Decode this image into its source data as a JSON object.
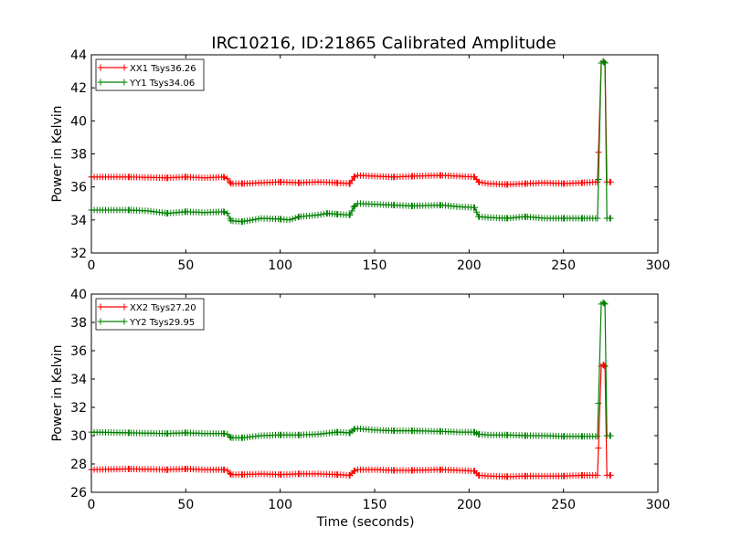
{
  "chart_data": [
    {
      "type": "line",
      "title": "IRC10216, ID:21865 Calibrated Amplitude",
      "xlabel": "",
      "ylabel": "Power in Kelvin",
      "xlim": [
        0,
        300
      ],
      "ylim": [
        32,
        44
      ],
      "xticks": [
        0,
        50,
        100,
        150,
        200,
        250,
        300
      ],
      "yticks": [
        32,
        34,
        36,
        38,
        40,
        42,
        44
      ],
      "legend_position": "top-left",
      "grid": false,
      "marker": "+",
      "series": [
        {
          "name": "XX1 Tsys36.26",
          "color": "#ff0000",
          "x": [
            0,
            20,
            40,
            50,
            60,
            70,
            72,
            74,
            80,
            90,
            100,
            110,
            120,
            130,
            137,
            139,
            141,
            150,
            160,
            170,
            185,
            195,
            203,
            205,
            210,
            220,
            230,
            240,
            250,
            260,
            268,
            270,
            271,
            272,
            273,
            275
          ],
          "y": [
            36.6,
            36.6,
            36.55,
            36.6,
            36.55,
            36.6,
            36.5,
            36.2,
            36.2,
            36.25,
            36.3,
            36.25,
            36.3,
            36.25,
            36.2,
            36.6,
            36.7,
            36.65,
            36.6,
            36.65,
            36.7,
            36.65,
            36.6,
            36.3,
            36.2,
            36.15,
            36.2,
            36.25,
            36.2,
            36.25,
            36.3,
            43.5,
            43.6,
            43.5,
            36.3,
            36.3
          ]
        },
        {
          "name": "YY1 Tsys34.06",
          "color": "#008000",
          "x": [
            0,
            20,
            30,
            40,
            50,
            60,
            70,
            72,
            74,
            80,
            90,
            100,
            105,
            110,
            120,
            125,
            130,
            137,
            139,
            141,
            150,
            160,
            170,
            185,
            195,
            203,
            205,
            210,
            220,
            230,
            240,
            250,
            260,
            268,
            270,
            271,
            272,
            273,
            275
          ],
          "y": [
            34.6,
            34.6,
            34.55,
            34.4,
            34.5,
            34.45,
            34.5,
            34.4,
            33.95,
            33.9,
            34.1,
            34.05,
            34.0,
            34.2,
            34.3,
            34.4,
            34.35,
            34.3,
            34.8,
            35.0,
            34.95,
            34.9,
            34.85,
            34.9,
            34.8,
            34.75,
            34.2,
            34.15,
            34.1,
            34.2,
            34.1,
            34.1,
            34.1,
            34.1,
            43.5,
            43.6,
            43.5,
            34.1,
            34.1
          ]
        }
      ]
    },
    {
      "type": "line",
      "title": "",
      "xlabel": "Time (seconds)",
      "ylabel": "Power in Kelvin",
      "xlim": [
        0,
        300
      ],
      "ylim": [
        26,
        40
      ],
      "xticks": [
        0,
        50,
        100,
        150,
        200,
        250,
        300
      ],
      "yticks": [
        26,
        28,
        30,
        32,
        34,
        36,
        38,
        40
      ],
      "legend_position": "top-left",
      "grid": false,
      "marker": "+",
      "series": [
        {
          "name": "XX2 Tsys27.20",
          "color": "#ff0000",
          "x": [
            0,
            20,
            40,
            50,
            60,
            70,
            72,
            74,
            80,
            90,
            100,
            110,
            120,
            130,
            137,
            139,
            141,
            150,
            160,
            170,
            185,
            195,
            203,
            205,
            210,
            220,
            230,
            240,
            250,
            260,
            268,
            270,
            271,
            272,
            273,
            275
          ],
          "y": [
            27.6,
            27.65,
            27.6,
            27.65,
            27.6,
            27.6,
            27.55,
            27.25,
            27.25,
            27.3,
            27.25,
            27.3,
            27.3,
            27.25,
            27.2,
            27.5,
            27.6,
            27.6,
            27.55,
            27.55,
            27.6,
            27.55,
            27.5,
            27.2,
            27.15,
            27.1,
            27.15,
            27.15,
            27.15,
            27.2,
            27.2,
            34.9,
            35.0,
            34.9,
            27.2,
            27.2
          ]
        },
        {
          "name": "YY2 Tsys29.95",
          "color": "#008000",
          "x": [
            0,
            20,
            40,
            50,
            60,
            70,
            72,
            74,
            80,
            90,
            100,
            110,
            120,
            130,
            137,
            139,
            141,
            150,
            160,
            170,
            185,
            195,
            203,
            205,
            210,
            220,
            230,
            240,
            250,
            260,
            268,
            270,
            271,
            272,
            273,
            275
          ],
          "y": [
            30.25,
            30.2,
            30.15,
            30.2,
            30.15,
            30.15,
            30.1,
            29.85,
            29.85,
            30.0,
            30.05,
            30.05,
            30.1,
            30.25,
            30.2,
            30.45,
            30.5,
            30.4,
            30.35,
            30.35,
            30.3,
            30.25,
            30.25,
            30.1,
            30.05,
            30.05,
            30.0,
            30.0,
            29.95,
            29.95,
            29.95,
            39.3,
            39.4,
            39.3,
            30.0,
            30.0
          ]
        }
      ]
    }
  ]
}
